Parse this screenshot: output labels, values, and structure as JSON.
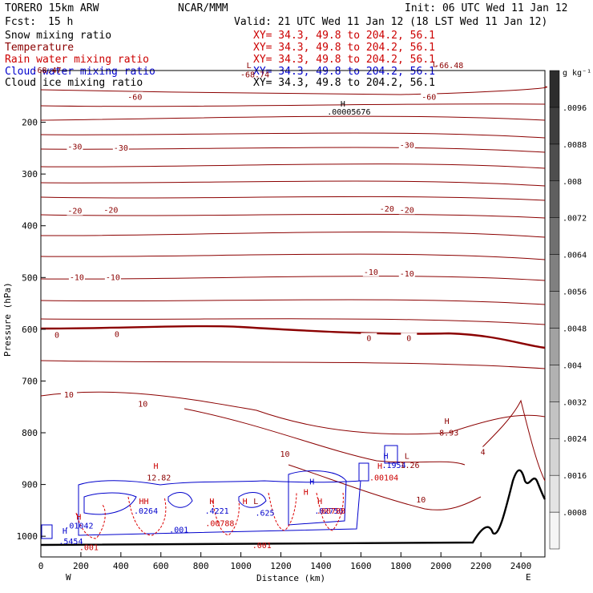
{
  "header": {
    "model": "TORERO  15km ARW",
    "org": "NCAR/MMM",
    "init": "Init: 06 UTC Wed 11 Jan 12",
    "fcst_label": "Fcst:",
    "fcst_value": "15 h",
    "valid": "Valid: 21 UTC Wed 11 Jan 12 (18 LST Wed 11 Jan 12)"
  },
  "legend": [
    {
      "name": "Snow mixing ratio",
      "xy": "XY=  34.3, 49.8 to 204.2, 56.1",
      "color": "#000000",
      "xy_color": "#cc0000"
    },
    {
      "name": "Temperature",
      "xy": "XY=  34.3, 49.8 to 204.2, 56.1",
      "color": "#8b0000",
      "xy_color": "#cc0000"
    },
    {
      "name": "Rain water mixing ratio",
      "xy": "XY=  34.3, 49.8 to 204.2, 56.1",
      "color": "#cc0000",
      "xy_color": "#cc0000"
    },
    {
      "name": "Cloud water mixing ratio",
      "xy": "XY=  34.3, 49.8 to 204.2, 56.1",
      "color": "#0000cc",
      "xy_color": "#0000cc"
    },
    {
      "name": "Cloud ice mixing ratio",
      "xy": "XY=  34.3, 49.8 to 204.2, 56.1",
      "color": "#000000",
      "xy_color": "#000000"
    }
  ],
  "colors": {
    "temperature": "#8b0000",
    "rain": "#dd0000",
    "cloud_water": "#0000cc",
    "terrain": "#000000"
  },
  "chart_data": {
    "type": "contour-cross-section",
    "xlabel": "Distance (km)",
    "ylabel": "Pressure (hPa)",
    "xlim": [
      0,
      2520
    ],
    "ylim": [
      1040,
      100
    ],
    "x_ticks": [
      0,
      200,
      400,
      600,
      800,
      1000,
      1200,
      1400,
      1600,
      1800,
      2000,
      2200,
      2400
    ],
    "y_ticks": [
      200,
      300,
      400,
      500,
      600,
      700,
      800,
      900,
      1000
    ],
    "endpoint_labels": {
      "left": "W",
      "right": "E"
    },
    "colorbar": {
      "unit": "g kg⁻¹",
      "ticks": [
        ".0008",
        ".0016",
        ".0024",
        ".0032",
        ".004",
        ".0048",
        ".0056",
        ".0064",
        ".0072",
        ".008",
        ".0088",
        ".0096"
      ]
    },
    "temperature_contour_labels": [
      {
        "text": "-60",
        "x": 470,
        "p": 152
      },
      {
        "text": "-60",
        "x": 1940,
        "p": 152
      },
      {
        "text": "-30",
        "x": 170,
        "p": 248
      },
      {
        "text": "-30",
        "x": 400,
        "p": 250
      },
      {
        "text": "-30",
        "x": 1830,
        "p": 245
      },
      {
        "text": "-20",
        "x": 170,
        "p": 372
      },
      {
        "text": "-20",
        "x": 350,
        "p": 370
      },
      {
        "text": "-20",
        "x": 1730,
        "p": 368
      },
      {
        "text": "-20",
        "x": 1830,
        "p": 370
      },
      {
        "text": "-10",
        "x": 180,
        "p": 500
      },
      {
        "text": "-10",
        "x": 360,
        "p": 500
      },
      {
        "text": "-10",
        "x": 1650,
        "p": 490
      },
      {
        "text": "-10",
        "x": 1830,
        "p": 493
      },
      {
        "text": "0",
        "x": 80,
        "p": 612
      },
      {
        "text": "0",
        "x": 380,
        "p": 610
      },
      {
        "text": "0",
        "x": 1640,
        "p": 618
      },
      {
        "text": "0",
        "x": 1840,
        "p": 618
      },
      {
        "text": "10",
        "x": 140,
        "p": 727
      },
      {
        "text": "10",
        "x": 510,
        "p": 745
      },
      {
        "text": "10",
        "x": 1220,
        "p": 842
      },
      {
        "text": "10",
        "x": 1900,
        "p": 930
      },
      {
        "text": "4",
        "x": 2210,
        "p": 838
      }
    ],
    "extrema_labels": [
      {
        "text": "L",
        "x": 1040,
        "p": 95,
        "color": "#8b0000"
      },
      {
        "text": "-68.74",
        "x": 1070,
        "p": 113,
        "color": "#8b0000"
      },
      {
        "text": "-68.47",
        "x": 30,
        "p": 105,
        "color": "#8b0000"
      },
      {
        "text": "L",
        "x": 1970,
        "p": 93,
        "color": "#8b0000"
      },
      {
        "text": "-66.48",
        "x": 2040,
        "p": 95,
        "color": "#8b0000"
      },
      {
        "text": "H",
        "x": 1510,
        "p": 170,
        "color": "#000000"
      },
      {
        "text": ".00005676",
        "x": 1540,
        "p": 185,
        "color": "#000000"
      },
      {
        "text": "H",
        "x": 2030,
        "p": 783,
        "color": "#8b0000"
      },
      {
        "text": "8.93",
        "x": 2040,
        "p": 805,
        "color": "#8b0000"
      },
      {
        "text": "H",
        "x": 575,
        "p": 870,
        "color": "#cc0000"
      },
      {
        "text": "12.82",
        "x": 590,
        "p": 892,
        "color": "#8b0000"
      },
      {
        "text": "H",
        "x": 1695,
        "p": 870,
        "color": "#cc0000"
      },
      {
        "text": ".00104",
        "x": 1715,
        "p": 892,
        "color": "#cc0000"
      },
      {
        "text": "H",
        "x": 1725,
        "p": 850,
        "color": "#0000cc"
      },
      {
        "text": "L",
        "x": 1830,
        "p": 850,
        "color": "#8b0000"
      },
      {
        "text": ".1954",
        "x": 1765,
        "p": 868,
        "color": "#0000cc"
      },
      {
        "text": "1.26",
        "x": 1845,
        "p": 868,
        "color": "#8b0000"
      },
      {
        "text": "H",
        "x": 190,
        "p": 968,
        "color": "#cc0000"
      },
      {
        "text": ".01042",
        "x": 190,
        "p": 985,
        "color": "#0000cc"
      },
      {
        "text": "H",
        "x": 120,
        "p": 995,
        "color": "#0000cc"
      },
      {
        "text": ".5454",
        "x": 150,
        "p": 1015,
        "color": "#0000cc"
      },
      {
        "text": ".001",
        "x": 240,
        "p": 1027,
        "color": "#cc0000"
      },
      {
        "text": "HH",
        "x": 515,
        "p": 938,
        "color": "#cc0000"
      },
      {
        "text": ".0264",
        "x": 525,
        "p": 956,
        "color": "#0000cc"
      },
      {
        "text": ".001",
        "x": 690,
        "p": 993,
        "color": "#0000cc"
      },
      {
        "text": "H",
        "x": 855,
        "p": 938,
        "color": "#cc0000"
      },
      {
        "text": ".4221",
        "x": 880,
        "p": 956,
        "color": "#0000cc"
      },
      {
        "text": ".00788",
        "x": 895,
        "p": 980,
        "color": "#cc0000"
      },
      {
        "text": "H",
        "x": 1020,
        "p": 938,
        "color": "#cc0000"
      },
      {
        "text": "L",
        "x": 1075,
        "p": 938,
        "color": "#8b0000"
      },
      {
        "text": ".625",
        "x": 1120,
        "p": 960,
        "color": "#0000cc"
      },
      {
        "text": ".001",
        "x": 1105,
        "p": 1023,
        "color": "#cc0000"
      },
      {
        "text": "H",
        "x": 1355,
        "p": 900,
        "color": "#0000cc"
      },
      {
        "text": "H",
        "x": 1395,
        "p": 938,
        "color": "#cc0000"
      },
      {
        "text": ".02756",
        "x": 1440,
        "p": 956,
        "color": "#0000cc"
      },
      {
        "text": ".00788",
        "x": 1450,
        "p": 956,
        "color": "#cc0000"
      },
      {
        "text": "H",
        "x": 1325,
        "p": 920,
        "color": "#cc0000"
      }
    ]
  }
}
